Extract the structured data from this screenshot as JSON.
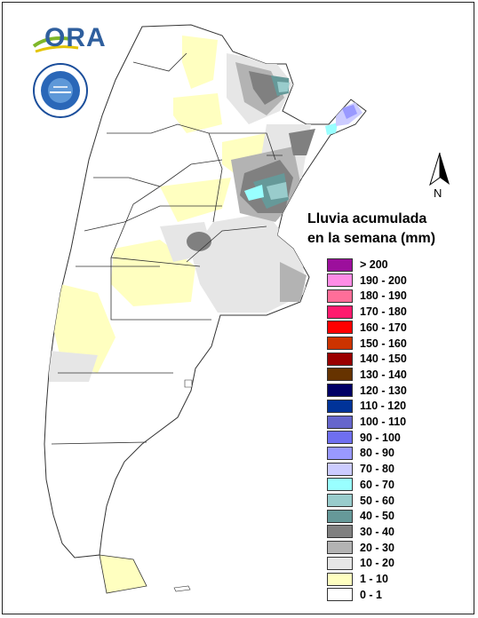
{
  "logo": {
    "brand_text": "ORA",
    "seal_text": "SERVICIO METEOROLÓGICO NACIONAL ARGENTINA"
  },
  "north_arrow": {
    "label": "N"
  },
  "legend": {
    "title_line1": "Lluvia acumulada",
    "title_line2": "en la semana (mm)",
    "items": [
      {
        "label": "> 200",
        "color": "#9c0f9c"
      },
      {
        "label": "190 - 200",
        "color": "#ff8ce6"
      },
      {
        "label": "180 - 190",
        "color": "#ff6e99"
      },
      {
        "label": "170 - 180",
        "color": "#ff1a6e"
      },
      {
        "label": "160 - 170",
        "color": "#ff0000"
      },
      {
        "label": "150 - 160",
        "color": "#cc3300"
      },
      {
        "label": "140 - 150",
        "color": "#9a0000"
      },
      {
        "label": "130 - 140",
        "color": "#663300"
      },
      {
        "label": "120 - 130",
        "color": "#000066"
      },
      {
        "label": "110 - 120",
        "color": "#003399"
      },
      {
        "label": "100 - 110",
        "color": "#6666cc"
      },
      {
        "label": "90 - 100",
        "color": "#6f6ff0"
      },
      {
        "label": "80 - 90",
        "color": "#9999ff"
      },
      {
        "label": "70 - 80",
        "color": "#ccccff"
      },
      {
        "label": "60 - 70",
        "color": "#99ffff"
      },
      {
        "label": "50 - 60",
        "color": "#99cccc"
      },
      {
        "label": "40 - 50",
        "color": "#669999"
      },
      {
        "label": "30 - 40",
        "color": "#808080"
      },
      {
        "label": "20 - 30",
        "color": "#b3b3b3"
      },
      {
        "label": "10 - 20",
        "color": "#e6e6e6"
      },
      {
        "label": "1 - 10",
        "color": "#ffffc0"
      },
      {
        "label": "0 - 1",
        "color": "#ffffff"
      }
    ]
  }
}
